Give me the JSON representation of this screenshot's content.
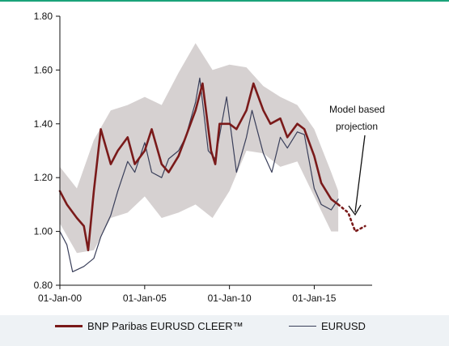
{
  "chart_data": {
    "type": "line",
    "title": "",
    "xlabel": "",
    "ylabel": "",
    "ylim": [
      0.8,
      1.8
    ],
    "xlim": [
      "2000-01-01",
      "2018-06-01"
    ],
    "y_ticks": [
      "0.80",
      "1.00",
      "1.20",
      "1.40",
      "1.60",
      "1.80"
    ],
    "x_ticks": [
      {
        "label": "01-Jan-00",
        "date": "2000-01-01"
      },
      {
        "label": "01-Jan-05",
        "date": "2005-01-01"
      },
      {
        "label": "01-Jan-10",
        "date": "2010-01-01"
      },
      {
        "label": "01-Jan-15",
        "date": "2015-01-01"
      }
    ],
    "grid": false,
    "legend_position": "bottom",
    "annotation": {
      "line1": "Model based",
      "line2": "projection"
    },
    "series": [
      {
        "name": "BNP Paribas EURUSD CLEER™",
        "color": "#7a1a1a",
        "x": [
          "2000-01-01",
          "2000-06-01",
          "2001-01-01",
          "2001-06-01",
          "2001-09-01",
          "2002-01-01",
          "2002-06-01",
          "2003-01-01",
          "2003-06-01",
          "2004-01-01",
          "2004-06-01",
          "2005-01-01",
          "2005-06-01",
          "2006-01-01",
          "2006-06-01",
          "2007-01-01",
          "2007-06-01",
          "2008-01-01",
          "2008-06-01",
          "2008-12-01",
          "2009-03-01",
          "2009-06-01",
          "2010-01-01",
          "2010-06-01",
          "2011-01-01",
          "2011-06-01",
          "2012-01-01",
          "2012-06-01",
          "2013-01-01",
          "2013-06-01",
          "2014-01-01",
          "2014-06-01",
          "2015-01-01",
          "2015-06-01",
          "2016-01-01",
          "2016-06-01"
        ],
        "y": [
          1.15,
          1.1,
          1.05,
          1.02,
          0.93,
          1.15,
          1.38,
          1.25,
          1.3,
          1.35,
          1.25,
          1.3,
          1.38,
          1.25,
          1.22,
          1.28,
          1.35,
          1.45,
          1.55,
          1.3,
          1.25,
          1.4,
          1.4,
          1.38,
          1.45,
          1.55,
          1.45,
          1.4,
          1.42,
          1.35,
          1.4,
          1.38,
          1.28,
          1.18,
          1.12,
          1.1
        ]
      },
      {
        "name": "EURUSD",
        "color": "#3a3f5a",
        "x": [
          "2000-01-01",
          "2000-06-01",
          "2000-10-01",
          "2001-06-01",
          "2002-01-01",
          "2002-06-01",
          "2003-01-01",
          "2003-06-01",
          "2004-01-01",
          "2004-06-01",
          "2005-01-01",
          "2005-06-01",
          "2006-01-01",
          "2006-06-01",
          "2007-01-01",
          "2007-06-01",
          "2008-01-01",
          "2008-04-01",
          "2008-10-01",
          "2009-03-01",
          "2009-11-01",
          "2010-06-01",
          "2011-01-01",
          "2011-05-01",
          "2012-01-01",
          "2012-07-01",
          "2013-01-01",
          "2013-06-01",
          "2014-01-01",
          "2014-06-01",
          "2015-01-01",
          "2015-06-01",
          "2016-01-01",
          "2016-06-01"
        ],
        "y": [
          1.0,
          0.95,
          0.85,
          0.87,
          0.9,
          0.98,
          1.06,
          1.15,
          1.26,
          1.22,
          1.33,
          1.22,
          1.2,
          1.27,
          1.3,
          1.35,
          1.48,
          1.57,
          1.3,
          1.27,
          1.5,
          1.22,
          1.35,
          1.45,
          1.29,
          1.22,
          1.35,
          1.31,
          1.37,
          1.36,
          1.16,
          1.1,
          1.08,
          1.12
        ]
      },
      {
        "name": "Model based projection",
        "color": "#7a1a1a",
        "x": [
          "2016-06-01",
          "2017-01-01",
          "2017-06-01",
          "2018-01-01"
        ],
        "y": [
          1.1,
          1.07,
          1.0,
          1.02
        ]
      }
    ],
    "band": {
      "x": [
        "2000-01-01",
        "2001-01-01",
        "2002-01-01",
        "2003-01-01",
        "2004-01-01",
        "2005-01-01",
        "2006-01-01",
        "2007-01-01",
        "2008-01-01",
        "2009-01-01",
        "2010-01-01",
        "2011-01-01",
        "2012-01-01",
        "2013-01-01",
        "2014-01-01",
        "2015-01-01",
        "2016-01-01",
        "2016-06-01"
      ],
      "upper": [
        1.24,
        1.16,
        1.34,
        1.45,
        1.47,
        1.5,
        1.47,
        1.59,
        1.7,
        1.6,
        1.62,
        1.61,
        1.54,
        1.5,
        1.47,
        1.38,
        1.22,
        1.15
      ],
      "lower": [
        1.03,
        0.92,
        0.93,
        1.05,
        1.07,
        1.13,
        1.05,
        1.07,
        1.1,
        1.05,
        1.15,
        1.3,
        1.29,
        1.24,
        1.26,
        1.13,
        1.0,
        1.0
      ]
    }
  }
}
